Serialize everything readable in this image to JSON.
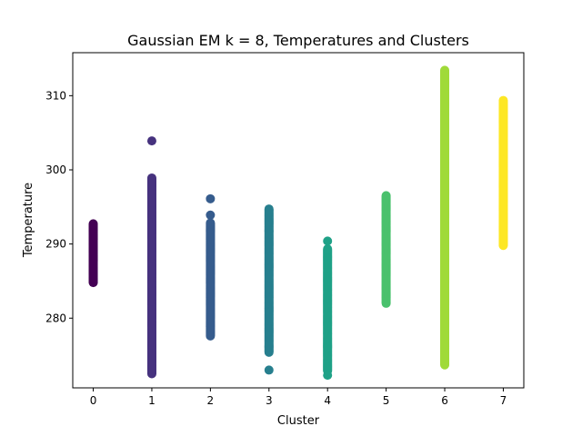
{
  "chart_data": {
    "type": "scatter",
    "title": "Gaussian EM k = 8, Temperatures and Clusters",
    "xlabel": "Cluster",
    "ylabel": "Temperature",
    "xlim": [
      -0.35,
      7.35
    ],
    "ylim": [
      270.6,
      315.8
    ],
    "xticks": [
      0,
      1,
      2,
      3,
      4,
      5,
      6,
      7
    ],
    "yticks": [
      280,
      290,
      300,
      310
    ],
    "grid": false,
    "legend": "none",
    "series": [
      {
        "cluster": 0,
        "color": "#440154",
        "range": [
          284.8,
          292.8
        ],
        "outliers": []
      },
      {
        "cluster": 1,
        "color": "#46327e",
        "range": [
          272.5,
          299.0
        ],
        "outliers": [
          303.9
        ]
      },
      {
        "cluster": 2,
        "color": "#365c8d",
        "range": [
          277.6,
          292.9
        ],
        "outliers": [
          293.9,
          296.1
        ]
      },
      {
        "cluster": 3,
        "color": "#277f8e",
        "range": [
          275.4,
          294.8
        ],
        "outliers": [
          273.0
        ]
      },
      {
        "cluster": 4,
        "color": "#1fa187",
        "range": [
          272.9,
          289.4
        ],
        "outliers": [
          272.3,
          290.4
        ]
      },
      {
        "cluster": 5,
        "color": "#4ac16d",
        "range": [
          282.0,
          296.6
        ],
        "outliers": []
      },
      {
        "cluster": 6,
        "color": "#a0da39",
        "range": [
          273.7,
          313.5
        ],
        "outliers": []
      },
      {
        "cluster": 7,
        "color": "#fde725",
        "range": [
          289.8,
          309.4
        ],
        "outliers": []
      }
    ]
  }
}
